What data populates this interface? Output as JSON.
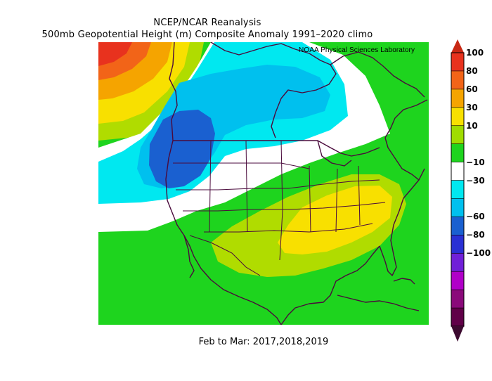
{
  "title_line1": "NCEP/NCAR Reanalysis",
  "title_line2": "500mb Geopotential Height (m) Composite Anomaly 1991–2020 climo",
  "credit": "NOAA Physical Sciences Laboratory",
  "period": "Feb to Mar: 2017,2018,2019",
  "colorbar": {
    "levels": [
      {
        "label": "100",
        "color": "#e8321e"
      },
      {
        "label": "80",
        "color": "#f26418"
      },
      {
        "label": "60",
        "color": "#f5a400"
      },
      {
        "label": "30",
        "color": "#f8e000"
      },
      {
        "label": "10",
        "color": "#a0dc00"
      },
      {
        "label": "",
        "color": "#1ed41e"
      },
      {
        "label": "−10",
        "color": "#ffffff"
      },
      {
        "label": "−30",
        "color": "#00e8f0"
      },
      {
        "label": "",
        "color": "#00c0ee"
      },
      {
        "label": "−60",
        "color": "#1a60d0"
      },
      {
        "label": "−80",
        "color": "#2a30d4"
      },
      {
        "label": "−100",
        "color": "#7020d8"
      },
      {
        "label": "",
        "color": "#b000c8"
      },
      {
        "label": "",
        "color": "#8a0a7a"
      },
      {
        "label": "",
        "color": "#600048"
      }
    ],
    "top_arrow_color": "#c82814",
    "bottom_arrow_color": "#3c0a30"
  },
  "fill_colors": {
    "green": "#1ed41e",
    "yellow_green": "#b0dc00",
    "yellow": "#f8e000",
    "orange": "#f5a400",
    "red_orange": "#f26418",
    "red": "#e8321e",
    "white": "#ffffff",
    "cyan": "#00e8f0",
    "light_blue": "#00c0ee",
    "blue": "#1a60d0",
    "outline": "#4a0a3c"
  }
}
